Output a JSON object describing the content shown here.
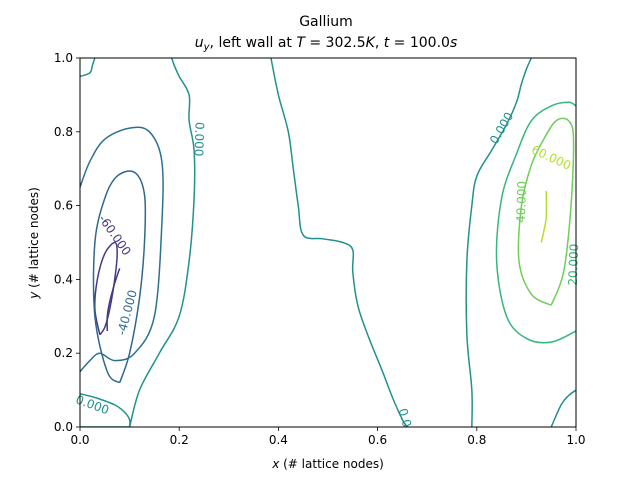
{
  "chart_data": {
    "type": "contour",
    "title": "Gallium",
    "subtitle_parts": {
      "var": "u",
      "var_sub": "y",
      "mid": ", left wall at ",
      "T": "T",
      "T_val": " = 302.5",
      "K": "K",
      "sep": ", ",
      "t": "t",
      "t_val": " = 100.0",
      "s": "s"
    },
    "xlabel_parts": {
      "var": "x",
      "rest": " (# lattice nodes)"
    },
    "ylabel_parts": {
      "var": "y",
      "rest": " (# lattice nodes)"
    },
    "xlim": [
      0.0,
      1.0
    ],
    "ylim": [
      0.0,
      1.0
    ],
    "xticks": [
      "0.0",
      "0.2",
      "0.4",
      "0.6",
      "0.8",
      "1.0"
    ],
    "yticks": [
      "0.0",
      "0.2",
      "0.4",
      "0.6",
      "0.8",
      "1.0"
    ],
    "contour_labels": [
      {
        "text": "-60.000",
        "level": -60,
        "x": 0.07,
        "y": 0.52,
        "rotation": 55,
        "color": "#443a83"
      },
      {
        "text": "-40.000",
        "level": -40,
        "x": 0.095,
        "y": 0.31,
        "rotation": -75,
        "color": "#31688e"
      },
      {
        "text": "0.000",
        "level": 0,
        "x": 0.24,
        "y": 0.78,
        "rotation": 92,
        "color": "#21918c"
      },
      {
        "text": "0.000",
        "level": 0,
        "x": 0.025,
        "y": 0.06,
        "rotation": 20,
        "color": "#21918c"
      },
      {
        "text": "0.000",
        "level": 0,
        "x": 0.85,
        "y": 0.81,
        "rotation": -60,
        "color": "#21918c"
      },
      {
        "text": "0.0",
        "level": 0,
        "x": 0.655,
        "y": 0.025,
        "rotation": 75,
        "color": "#21918c"
      },
      {
        "text": "20.000",
        "level": 20,
        "x": 0.995,
        "y": 0.44,
        "rotation": -88,
        "color": "#35b779"
      },
      {
        "text": "40.000",
        "level": 40,
        "x": 0.89,
        "y": 0.61,
        "rotation": -88,
        "color": "#6ece58"
      },
      {
        "text": "60.000",
        "level": 60,
        "x": 0.95,
        "y": 0.73,
        "rotation": 25,
        "color": "#b5de2b"
      }
    ],
    "contours": [
      {
        "level": -60,
        "color": "#443a83",
        "points": [
          [
            0.04,
            0.25
          ],
          [
            0.03,
            0.32
          ],
          [
            0.035,
            0.4
          ],
          [
            0.05,
            0.47
          ],
          [
            0.07,
            0.5
          ],
          [
            0.075,
            0.47
          ],
          [
            0.07,
            0.4
          ],
          [
            0.06,
            0.32
          ],
          [
            0.05,
            0.27
          ],
          [
            0.04,
            0.25
          ]
        ]
      },
      {
        "level": -60,
        "color": "#443a83",
        "points": [
          [
            0.08,
            0.43
          ],
          [
            0.07,
            0.39
          ],
          [
            0.06,
            0.34
          ],
          [
            0.055,
            0.3
          ],
          [
            0.055,
            0.26
          ]
        ]
      },
      {
        "level": -40,
        "color": "#31688e",
        "points": [
          [
            0.08,
            0.12
          ],
          [
            0.055,
            0.15
          ],
          [
            0.03,
            0.3
          ],
          [
            0.03,
            0.5
          ],
          [
            0.05,
            0.62
          ],
          [
            0.075,
            0.68
          ],
          [
            0.11,
            0.69
          ],
          [
            0.13,
            0.63
          ],
          [
            0.13,
            0.5
          ],
          [
            0.12,
            0.35
          ],
          [
            0.1,
            0.2
          ],
          [
            0.08,
            0.12
          ]
        ]
      },
      {
        "level": -20,
        "color": "#2c728e",
        "points": [
          [
            0.0,
            0.15
          ],
          [
            0.02,
            0.18
          ],
          [
            0.04,
            0.2
          ],
          [
            0.07,
            0.18
          ],
          [
            0.11,
            0.2
          ],
          [
            0.15,
            0.3
          ],
          [
            0.165,
            0.55
          ],
          [
            0.165,
            0.72
          ],
          [
            0.14,
            0.8
          ],
          [
            0.1,
            0.81
          ],
          [
            0.05,
            0.78
          ],
          [
            0.02,
            0.72
          ],
          [
            0.0,
            0.65
          ]
        ]
      },
      {
        "level": 0,
        "color": "#21918c",
        "points": [
          [
            0.0,
            0.09
          ],
          [
            0.03,
            0.08
          ],
          [
            0.07,
            0.06
          ],
          [
            0.09,
            0.04
          ],
          [
            0.1,
            0.02
          ],
          [
            0.1,
            0.0
          ]
        ]
      },
      {
        "level": 0,
        "color": "#21918c",
        "points": [
          [
            0.0,
            0.95
          ],
          [
            0.02,
            0.96
          ],
          [
            0.025,
            0.98
          ],
          [
            0.03,
            1.0
          ]
        ]
      },
      {
        "level": 0,
        "color": "#21918c",
        "points": [
          [
            0.0,
            0.0
          ],
          [
            0.1,
            0.0
          ]
        ]
      },
      {
        "level": 0,
        "color": "#21918c",
        "points": [
          [
            0.1,
            0.0
          ],
          [
            0.12,
            0.1
          ],
          [
            0.16,
            0.2
          ],
          [
            0.2,
            0.3
          ],
          [
            0.22,
            0.45
          ],
          [
            0.23,
            0.62
          ],
          [
            0.23,
            0.75
          ],
          [
            0.22,
            0.83
          ],
          [
            0.22,
            0.9
          ],
          [
            0.2,
            0.95
          ],
          [
            0.19,
            0.98
          ],
          [
            0.185,
            1.0
          ]
        ]
      },
      {
        "level": 0,
        "color": "#21918c",
        "points": [
          [
            0.385,
            1.0
          ],
          [
            0.4,
            0.9
          ],
          [
            0.42,
            0.8
          ],
          [
            0.43,
            0.7
          ],
          [
            0.44,
            0.6
          ],
          [
            0.45,
            0.52
          ],
          [
            0.49,
            0.51
          ],
          [
            0.53,
            0.5
          ],
          [
            0.55,
            0.48
          ],
          [
            0.55,
            0.42
          ],
          [
            0.56,
            0.33
          ],
          [
            0.58,
            0.25
          ],
          [
            0.61,
            0.15
          ],
          [
            0.63,
            0.08
          ],
          [
            0.65,
            0.02
          ],
          [
            0.66,
            0.0
          ]
        ]
      },
      {
        "level": 0,
        "color": "#21918c",
        "points": [
          [
            0.79,
            0.0
          ],
          [
            0.79,
            0.1
          ],
          [
            0.78,
            0.25
          ],
          [
            0.78,
            0.45
          ],
          [
            0.79,
            0.6
          ],
          [
            0.8,
            0.68
          ],
          [
            0.83,
            0.75
          ],
          [
            0.86,
            0.82
          ],
          [
            0.88,
            0.88
          ],
          [
            0.89,
            0.93
          ],
          [
            0.9,
            0.97
          ],
          [
            0.91,
            1.0
          ]
        ]
      },
      {
        "level": 0,
        "color": "#21918c",
        "points": [
          [
            0.95,
            0.0
          ],
          [
            0.97,
            0.06
          ],
          [
            0.985,
            0.085
          ],
          [
            1.0,
            0.1
          ]
        ]
      },
      {
        "level": 20,
        "color": "#35b779",
        "points": [
          [
            1.0,
            0.26
          ],
          [
            0.95,
            0.23
          ],
          [
            0.9,
            0.24
          ],
          [
            0.86,
            0.3
          ],
          [
            0.84,
            0.45
          ],
          [
            0.85,
            0.62
          ],
          [
            0.88,
            0.74
          ],
          [
            0.91,
            0.83
          ],
          [
            0.95,
            0.87
          ],
          [
            0.985,
            0.88
          ],
          [
            1.0,
            0.87
          ]
        ]
      },
      {
        "level": 40,
        "color": "#6ece58",
        "points": [
          [
            0.95,
            0.33
          ],
          [
            0.91,
            0.36
          ],
          [
            0.885,
            0.45
          ],
          [
            0.89,
            0.6
          ],
          [
            0.91,
            0.71
          ],
          [
            0.935,
            0.78
          ],
          [
            0.96,
            0.83
          ],
          [
            0.985,
            0.83
          ],
          [
            0.995,
            0.78
          ],
          [
            0.99,
            0.6
          ],
          [
            0.975,
            0.42
          ],
          [
            0.95,
            0.33
          ]
        ]
      },
      {
        "level": 60,
        "color": "#b5de2b",
        "points": [
          [
            0.93,
            0.5
          ],
          [
            0.935,
            0.53
          ],
          [
            0.94,
            0.57
          ],
          [
            0.94,
            0.64
          ]
        ]
      }
    ]
  }
}
